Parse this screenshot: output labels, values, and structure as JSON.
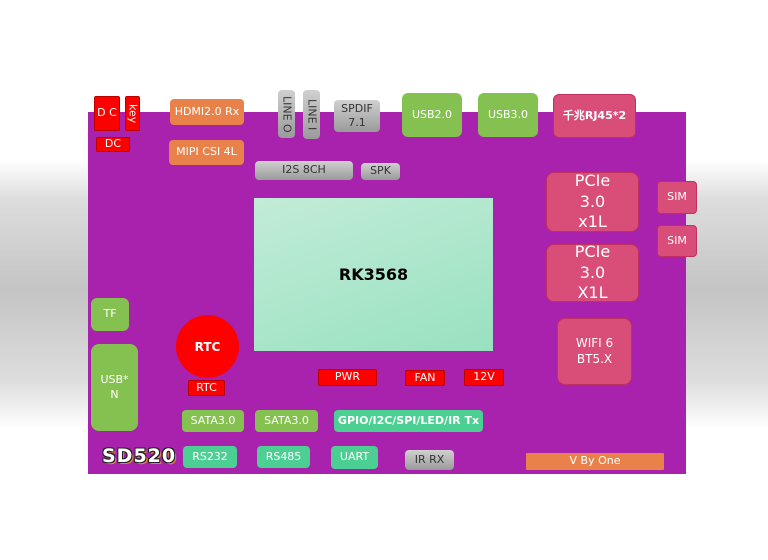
{
  "soc": "RK3568",
  "model": "SD520",
  "power": {
    "dc_jack": "D C",
    "key": "key",
    "dc_label": "DC",
    "pwr": "PWR",
    "fan": "FAN",
    "v12": "12V"
  },
  "media": {
    "hdmi": "HDMI2.0 Rx",
    "mipi": "MIPI CSI 4L",
    "line_out": "LINE O",
    "line_in": "LINE I",
    "spdif": "SPDIF 7.1",
    "i2s": "I2S 8CH",
    "spk": "SPK"
  },
  "usb": {
    "usb2": "USB2.0",
    "usb3": "USB3.0",
    "usbn": "USB* N"
  },
  "network": {
    "rj45": "千兆RJ45*2",
    "pcie1": "PCIe 3.0 x1L",
    "pcie2": "PCIe 3.0 X1L",
    "sim1": "SIM",
    "sim2": "SIM",
    "wifi": "WIFI 6 BT5.X"
  },
  "storage": {
    "tf": "TF",
    "sata1": "SATA3.0",
    "sata2": "SATA3.0"
  },
  "rtc": {
    "battery": "RTC",
    "label": "RTC"
  },
  "io": {
    "gpio": "GPIO/I2C/SPI/LED/IR Tx",
    "rs232": "RS232",
    "rs485": "RS485",
    "uart": "UART",
    "irrx": "IR RX"
  },
  "credit": "V By One",
  "colors": {
    "board": "#a822ad",
    "red": "#ff0000",
    "orange": "#e8824a",
    "green": "#84c150",
    "teal": "#4ccf92",
    "pink": "#d94e78"
  }
}
